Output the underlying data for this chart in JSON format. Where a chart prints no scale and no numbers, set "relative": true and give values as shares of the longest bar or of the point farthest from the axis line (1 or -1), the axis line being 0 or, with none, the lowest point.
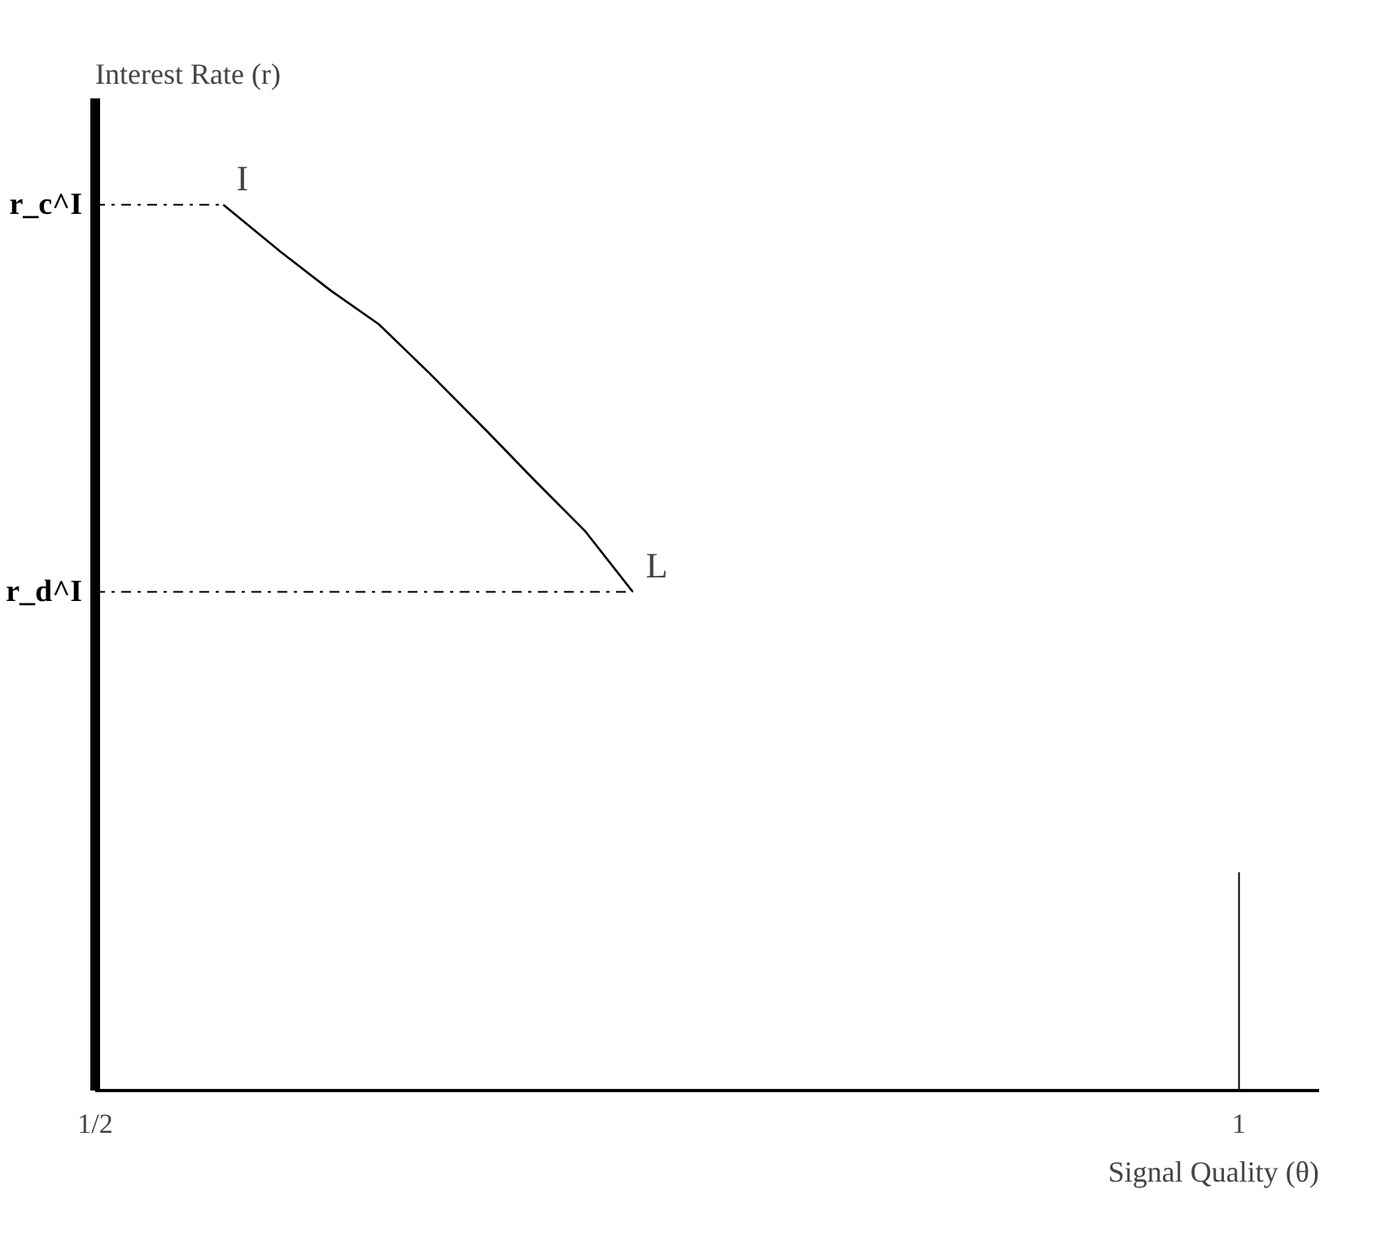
{
  "chart_data": {
    "type": "line",
    "relative": true,
    "xlabel": "Signal Quality (θ)",
    "ylabel": "Interest Rate (r)",
    "xlim": [
      0.5,
      1.035
    ],
    "xticks": [
      {
        "value": 0.5,
        "label": "1/2"
      },
      1
    ],
    "series": [
      {
        "color": "#000000",
        "x": [
          0.556,
          0.581,
          0.603,
          0.624,
          0.646,
          0.671,
          0.692,
          0.714,
          0.735
        ],
        "values": [
          1.0,
          0.947,
          0.903,
          0.865,
          0.81,
          0.745,
          0.689,
          0.632,
          0.563
        ]
      }
    ],
    "ref_lines": [
      {
        "axis": "y",
        "value": 1.0,
        "label": "r_c^I",
        "line_style": "dashdot"
      },
      {
        "axis": "y",
        "value": 0.563,
        "label": "r_d^I",
        "line_style": "dashdot"
      },
      {
        "axis": "x",
        "value": 1
      }
    ],
    "annotations": [
      {
        "text": "I",
        "x": 0.556,
        "y": 1.0
      },
      {
        "text": "L",
        "x": 0.735,
        "y": 0.563
      }
    ],
    "marker": "none",
    "line_style": "solid",
    "grid": false
  }
}
